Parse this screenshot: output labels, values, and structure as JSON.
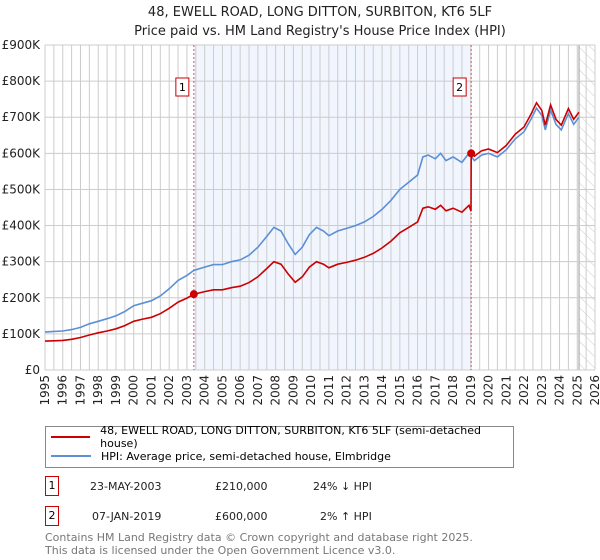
{
  "chart_data": {
    "type": "line",
    "title": "48, EWELL ROAD, LONG DITTON, SURBITON, KT6 5LF",
    "subtitle": "Price paid vs. HM Land Registry's House Price Index (HPI)",
    "xlim": [
      1995,
      2026
    ],
    "ylim": [
      0,
      900000
    ],
    "y_ticks": [
      {
        "v": 0,
        "label": "£0"
      },
      {
        "v": 100000,
        "label": "£100K"
      },
      {
        "v": 200000,
        "label": "£200K"
      },
      {
        "v": 300000,
        "label": "£300K"
      },
      {
        "v": 400000,
        "label": "£400K"
      },
      {
        "v": 500000,
        "label": "£500K"
      },
      {
        "v": 600000,
        "label": "£600K"
      },
      {
        "v": 700000,
        "label": "£700K"
      },
      {
        "v": 800000,
        "label": "£800K"
      },
      {
        "v": 900000,
        "label": "£900K"
      }
    ],
    "x_ticks": [
      "1995",
      "1996",
      "1997",
      "1998",
      "1999",
      "2000",
      "2001",
      "2002",
      "2003",
      "2004",
      "2005",
      "2006",
      "2007",
      "2008",
      "2009",
      "2010",
      "2011",
      "2012",
      "2013",
      "2014",
      "2015",
      "2016",
      "2017",
      "2018",
      "2019",
      "2020",
      "2021",
      "2022",
      "2023",
      "2024",
      "2025",
      "2026"
    ],
    "shaded_period": [
      2003.39,
      2019.02
    ],
    "forecast_hatch_from": 2025.1,
    "grid": true,
    "series": [
      {
        "name": "48, EWELL ROAD, LONG DITTON, SURBITON, KT6 5LF (semi-detached house)",
        "color": "#cc0000",
        "x": [
          1995,
          1995.5,
          1996,
          1996.5,
          1997,
          1997.5,
          1998,
          1998.5,
          1999,
          1999.5,
          2000,
          2000.5,
          2001,
          2001.5,
          2002,
          2002.5,
          2003,
          2003.39,
          2004,
          2004.5,
          2005,
          2005.5,
          2006,
          2006.5,
          2007,
          2007.5,
          2007.9,
          2008.3,
          2008.7,
          2009.1,
          2009.5,
          2009.9,
          2010.3,
          2010.7,
          2011,
          2011.5,
          2012,
          2012.5,
          2013,
          2013.5,
          2014,
          2014.5,
          2015,
          2015.5,
          2016,
          2016.3,
          2016.6,
          2017,
          2017.3,
          2017.6,
          2018,
          2018.5,
          2018.9,
          2019.01,
          2019.02,
          2019.2,
          2019.6,
          2020,
          2020.5,
          2021,
          2021.5,
          2022,
          2022.4,
          2022.7,
          2023,
          2023.2,
          2023.5,
          2023.8,
          2024.1,
          2024.5,
          2024.8,
          2025.1
        ],
        "y": [
          80000,
          81000,
          82000,
          85000,
          90000,
          97000,
          103000,
          108000,
          114000,
          123000,
          135000,
          141000,
          146000,
          156000,
          171000,
          188000,
          199000,
          210000,
          217000,
          222000,
          222000,
          228000,
          232000,
          242000,
          258000,
          281000,
          300000,
          293000,
          266000,
          243000,
          258000,
          285000,
          300000,
          293000,
          283000,
          293000,
          298000,
          304000,
          312000,
          323000,
          338000,
          357000,
          380000,
          395000,
          410000,
          448000,
          452000,
          445000,
          456000,
          441000,
          448000,
          437000,
          456000,
          440000,
          600000,
          592000,
          607000,
          612000,
          602000,
          622000,
          653000,
          673000,
          709000,
          740000,
          719000,
          678000,
          734000,
          694000,
          678000,
          724000,
          694000,
          714000
        ]
      },
      {
        "name": "HPI: Average price, semi-detached house, Elmbridge",
        "color": "#5b8fd6",
        "x": [
          1995,
          1995.5,
          1996,
          1996.5,
          1997,
          1997.5,
          1998,
          1998.5,
          1999,
          1999.5,
          2000,
          2000.5,
          2001,
          2001.5,
          2002,
          2002.5,
          2003,
          2003.39,
          2004,
          2004.5,
          2005,
          2005.5,
          2006,
          2006.5,
          2007,
          2007.5,
          2007.9,
          2008.3,
          2008.7,
          2009.1,
          2009.5,
          2009.9,
          2010.3,
          2010.7,
          2011,
          2011.5,
          2012,
          2012.5,
          2013,
          2013.5,
          2014,
          2014.5,
          2015,
          2015.5,
          2016,
          2016.3,
          2016.6,
          2017,
          2017.3,
          2017.6,
          2018,
          2018.5,
          2018.9,
          2019.2,
          2019.6,
          2020,
          2020.5,
          2021,
          2021.5,
          2022,
          2022.4,
          2022.7,
          2023,
          2023.2,
          2023.5,
          2023.8,
          2024.1,
          2024.5,
          2024.8,
          2025.1
        ],
        "y": [
          105000,
          107000,
          108000,
          112000,
          118000,
          128000,
          135000,
          142000,
          150000,
          162000,
          178000,
          185000,
          192000,
          205000,
          225000,
          248000,
          262000,
          276000,
          285000,
          292000,
          292000,
          300000,
          305000,
          318000,
          340000,
          370000,
          395000,
          385000,
          350000,
          320000,
          340000,
          375000,
          395000,
          385000,
          372000,
          385000,
          392000,
          400000,
          410000,
          425000,
          445000,
          470000,
          500000,
          520000,
          540000,
          590000,
          595000,
          585000,
          600000,
          580000,
          590000,
          575000,
          600000,
          580000,
          595000,
          600000,
          590000,
          610000,
          640000,
          660000,
          695000,
          725000,
          705000,
          665000,
          720000,
          680000,
          665000,
          710000,
          680000,
          700000
        ]
      }
    ],
    "sales": [
      {
        "id": "1",
        "x": 2003.39,
        "y": 210000,
        "date": "23-MAY-2003",
        "price": "£210,000",
        "hpi": "24% ↓ HPI"
      },
      {
        "id": "2",
        "x": 2019.02,
        "y": 600000,
        "date": "07-JAN-2019",
        "price": "£600,000",
        "hpi": "2% ↑ HPI"
      }
    ]
  },
  "footer": {
    "line1": "Contains HM Land Registry data © Crown copyright and database right 2025.",
    "line2": "This data is licensed under the Open Government Licence v3.0."
  }
}
